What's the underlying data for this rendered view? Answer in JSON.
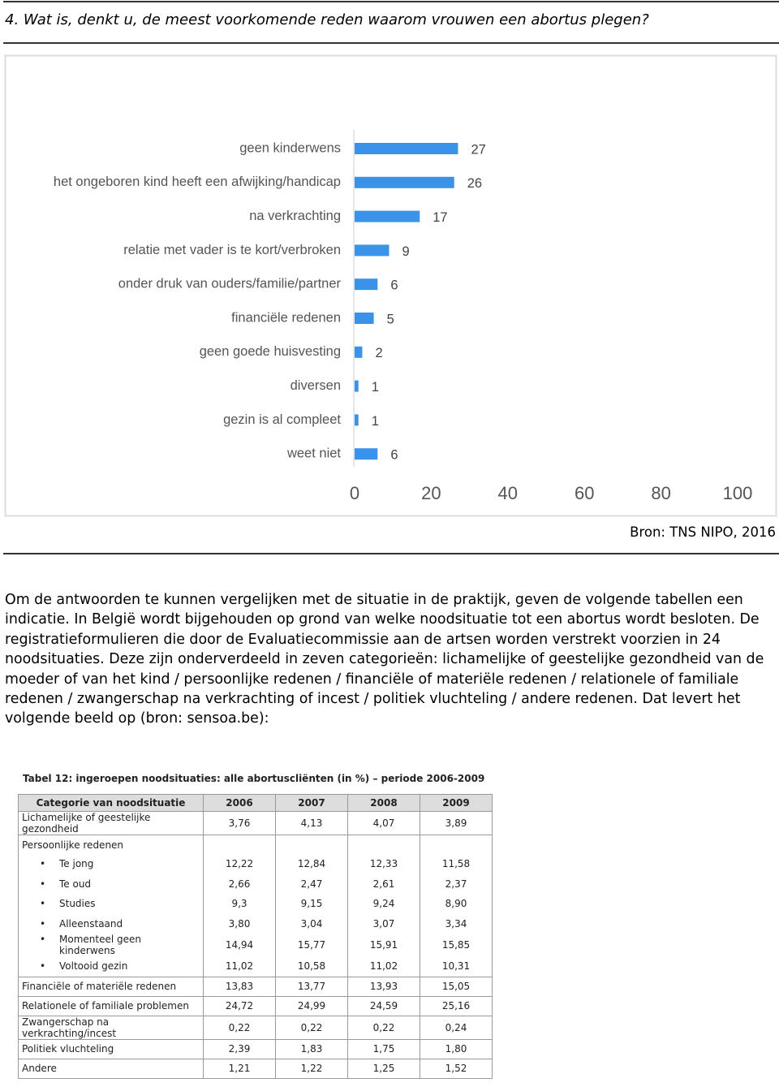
{
  "header": {
    "question": "4. Wat is, denkt u, de meest voorkomende reden waarom vrouwen een abortus plegen?"
  },
  "chart_data": {
    "type": "barh",
    "categories": [
      "geen kinderwens",
      "het ongeboren kind heeft een afwijking/handicap",
      "na verkrachting",
      "relatie met vader is te kort/verbroken",
      "onder druk van ouders/familie/partner",
      "financiële redenen",
      "geen goede huisvesting",
      "diversen",
      "gezin is al compleet",
      "weet niet"
    ],
    "values": [
      27,
      26,
      17,
      9,
      6,
      5,
      2,
      1,
      1,
      6
    ],
    "color": "#3a93e8",
    "xlim": [
      0,
      100
    ],
    "xticks": [
      0,
      20,
      40,
      60,
      80,
      100
    ]
  },
  "source": "Bron: TNS NIPO, 2016",
  "paragraph": "Om de antwoorden te kunnen vergelijken met de situatie in de praktijk, geven de volgende tabellen een indicatie. In België wordt bijgehouden op grond van welke noodsituatie tot een abortus wordt besloten. De registratieformulieren die door de Evaluatiecommissie aan de artsen worden verstrekt voorzien in 24 noodsituaties. Deze zijn onderverdeeld in zeven categorieën: lichamelijke of geestelijke gezondheid van de moeder of van het kind / persoonlijke redenen / financiële of materiële redenen / relationele of familiale redenen / zwangerschap na verkrachting of incest / politiek vluchteling / andere redenen. Dat levert het volgende beeld op (bron: sensoa.be):",
  "table": {
    "title": "Tabel 12: ingeroepen noodsituaties: alle abortuscliënten (in %) – periode 2006-2009",
    "columns": [
      "Categorie van noodsituatie",
      "2006",
      "2007",
      "2008",
      "2009"
    ],
    "rows": [
      {
        "label": "Lichamelijke of geestelijke gezondheid",
        "values": [
          "3,76",
          "4,13",
          "4,07",
          "3,89"
        ]
      },
      {
        "label": "Persoonlijke redenen",
        "subrows": [
          {
            "label": "Te jong",
            "values": [
              "12,22",
              "12,84",
              "12,33",
              "11,58"
            ]
          },
          {
            "label": "Te oud",
            "values": [
              "2,66",
              "2,47",
              "2,61",
              "2,37"
            ]
          },
          {
            "label": "Studies",
            "values": [
              "9,3",
              "9,15",
              "9,24",
              "8,90"
            ]
          },
          {
            "label": "Alleenstaand",
            "values": [
              "3,80",
              "3,04",
              "3,07",
              "3,34"
            ]
          },
          {
            "label": "Momenteel geen kinderwens",
            "values": [
              "14,94",
              "15,77",
              "15,91",
              "15,85"
            ]
          },
          {
            "label": "Voltooid gezin",
            "values": [
              "11,02",
              "10,58",
              "11,02",
              "10,31"
            ]
          }
        ]
      },
      {
        "label": "Financiële of materiële redenen",
        "values": [
          "13,83",
          "13,77",
          "13,93",
          "15,05"
        ]
      },
      {
        "label": "Relationele of familiale problemen",
        "values": [
          "24,72",
          "24,99",
          "24,59",
          "25,16"
        ]
      },
      {
        "label": "Zwangerschap na verkrachting/incest",
        "values": [
          "0,22",
          "0,22",
          "0,22",
          "0,24"
        ]
      },
      {
        "label": "Politiek vluchteling",
        "values": [
          "2,39",
          "1,83",
          "1,75",
          "1,80"
        ]
      },
      {
        "label": "Andere",
        "values": [
          "1,21",
          "1,22",
          "1,25",
          "1,52"
        ]
      }
    ]
  }
}
